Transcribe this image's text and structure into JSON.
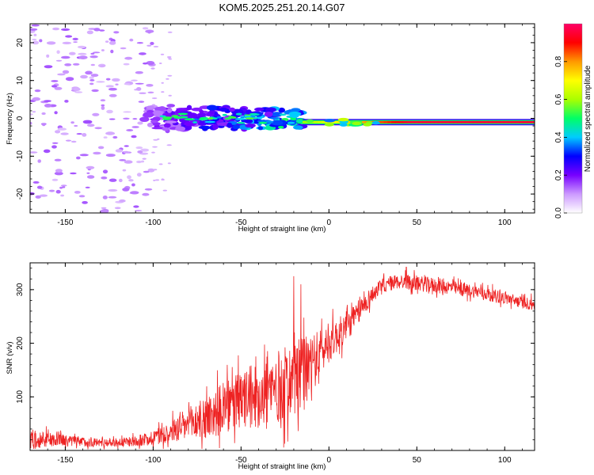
{
  "figure_title": "KOM5.2025.251.20.14.G07",
  "chart_data": [
    {
      "type": "heatmap",
      "title": "KOM5.2025.251.20.14.G07",
      "xlabel": "Height of straight line (km)",
      "ylabel": "Frequency (Hz)",
      "xlim": [
        -170,
        117
      ],
      "ylim": [
        -25,
        25
      ],
      "xticks": [
        -150,
        -100,
        -50,
        0,
        50,
        100
      ],
      "yticks": [
        -20,
        -10,
        0,
        10,
        20
      ],
      "colorbar": {
        "label": "Normalized spectral amplitude",
        "range": [
          0,
          1
        ],
        "ticks": [
          0.0,
          0.2,
          0.4,
          0.6,
          0.8
        ],
        "tick_labels": [
          "0.0",
          "0.2",
          "0.4",
          "0.6",
          "0.8"
        ],
        "colors": [
          "#ffffff",
          "#cc99ff",
          "#7700ff",
          "#0000ff",
          "#00ccff",
          "#00ff66",
          "#aaff00",
          "#ffff00",
          "#ff9900",
          "#ff0000",
          "#ff0066"
        ]
      },
      "features": [
        {
          "name": "scattered-noise",
          "x_range": [
            -170,
            -100
          ],
          "freq_range": [
            -25,
            25
          ],
          "amplitude": 0.1
        },
        {
          "name": "growing-signal",
          "x_range": [
            -105,
            -15
          ],
          "freq_center": 0,
          "freq_halfwidth": 3,
          "amplitude_range": [
            0.15,
            0.5
          ]
        },
        {
          "name": "carrier-line",
          "x_range": [
            -15,
            117
          ],
          "freq_center": -1,
          "amplitude_range": [
            0.6,
            0.95
          ]
        }
      ]
    },
    {
      "type": "line",
      "title": "",
      "xlabel": "Height of straight line (km)",
      "ylabel": "SNR (v/v)",
      "xlim": [
        -170,
        117
      ],
      "ylim": [
        0,
        350
      ],
      "xticks": [
        -150,
        -100,
        -50,
        0,
        50,
        100
      ],
      "yticks": [
        100,
        200,
        300
      ],
      "series": [
        {
          "name": "SNR",
          "color": "#ee2222",
          "envelope": {
            "x": [
              -170,
              -160,
              -150,
              -140,
              -130,
              -120,
              -110,
              -100,
              -90,
              -80,
              -70,
              -60,
              -50,
              -40,
              -30,
              -25,
              -20,
              -15,
              -10,
              -5,
              0,
              5,
              10,
              15,
              20,
              25,
              30,
              35,
              40,
              45,
              50,
              55,
              60,
              65,
              70,
              75,
              80,
              85,
              90,
              95,
              100,
              105,
              110,
              117
            ],
            "mean": [
              22,
              20,
              18,
              16,
              15,
              15,
              17,
              24,
              35,
              48,
              62,
              78,
              92,
              104,
              116,
              122,
              128,
              140,
              160,
              182,
              200,
              215,
              230,
              250,
              272,
              292,
              305,
              312,
              315,
              314,
              312,
              310,
              308,
              306,
              304,
              300,
              298,
              296,
              292,
              288,
              285,
              280,
              276,
              272
            ],
            "spread": [
              22,
              18,
              14,
              12,
              10,
              10,
              12,
              18,
              28,
              40,
              52,
              60,
              70,
              78,
              85,
              90,
              92,
              90,
              70,
              55,
              45,
              40,
              35,
              30,
              25,
              20,
              18,
              18,
              18,
              18,
              18,
              18,
              18,
              18,
              16,
              16,
              16,
              15,
              15,
              15,
              15,
              14,
              14,
              14
            ]
          },
          "spikes": [
            {
              "x": -20,
              "y": 325
            },
            {
              "x": -16,
              "y": 310
            },
            {
              "x": 44,
              "y": 342
            }
          ]
        }
      ]
    }
  ]
}
